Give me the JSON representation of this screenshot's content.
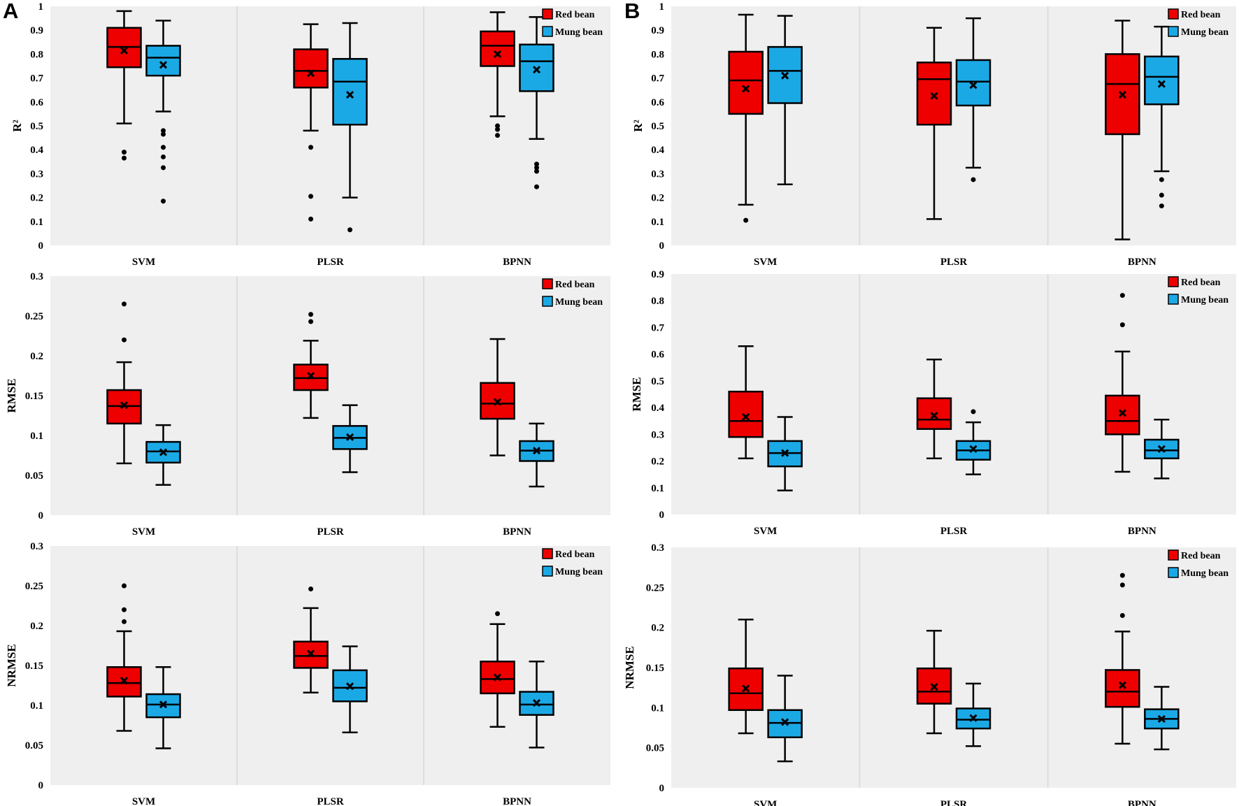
{
  "panels": [
    {
      "label": "A"
    },
    {
      "label": "B"
    }
  ],
  "legend": {
    "red": "Red bean",
    "mung": "Mung bean"
  },
  "colors": {
    "red": "#ee0000",
    "mung": "#1ba9e6",
    "plot_bg": "#efefef",
    "divider": "#dddddd",
    "outline": "#000000"
  },
  "chart_data": [
    {
      "type": "boxplot",
      "panel": "A",
      "title": "",
      "ylabel": "R²",
      "xlabel": "",
      "ylim": [
        0,
        1
      ],
      "yticks": [
        "0",
        "0.1",
        "0.2",
        "0.3",
        "0.4",
        "0.5",
        "0.6",
        "0.7",
        "0.8",
        "0.9",
        "1"
      ],
      "categories": [
        "SVM",
        "PLSR",
        "BPNN"
      ],
      "series": [
        {
          "name": "Red bean",
          "boxes": [
            {
              "whisker_low": 0.51,
              "q1": 0.745,
              "median": 0.83,
              "q3": 0.91,
              "whisker_high": 0.98,
              "mean": 0.815,
              "outliers": [
                0.39,
                0.365
              ]
            },
            {
              "whisker_low": 0.48,
              "q1": 0.66,
              "median": 0.73,
              "q3": 0.82,
              "whisker_high": 0.925,
              "mean": 0.72,
              "outliers": [
                0.41,
                0.205,
                0.11
              ]
            },
            {
              "whisker_low": 0.54,
              "q1": 0.75,
              "median": 0.835,
              "q3": 0.895,
              "whisker_high": 0.975,
              "mean": 0.8,
              "outliers": [
                0.5,
                0.485,
                0.46
              ]
            }
          ]
        },
        {
          "name": "Mung bean",
          "boxes": [
            {
              "whisker_low": 0.56,
              "q1": 0.71,
              "median": 0.785,
              "q3": 0.835,
              "whisker_high": 0.94,
              "mean": 0.755,
              "outliers": [
                0.48,
                0.465,
                0.41,
                0.37,
                0.325,
                0.185
              ]
            },
            {
              "whisker_low": 0.2,
              "q1": 0.505,
              "median": 0.685,
              "q3": 0.78,
              "whisker_high": 0.93,
              "mean": 0.63,
              "outliers": [
                0.065
              ]
            },
            {
              "whisker_low": 0.445,
              "q1": 0.645,
              "median": 0.77,
              "q3": 0.84,
              "whisker_high": 0.955,
              "mean": 0.735,
              "outliers": [
                0.34,
                0.325,
                0.31,
                0.245
              ]
            }
          ]
        }
      ]
    },
    {
      "type": "boxplot",
      "panel": "A",
      "title": "",
      "ylabel": "RMSE",
      "xlabel": "",
      "ylim": [
        0,
        0.3
      ],
      "yticks": [
        "0",
        "0.05",
        "0.1",
        "0.15",
        "0.2",
        "0.25",
        "0.3"
      ],
      "categories": [
        "SVM",
        "PLSR",
        "BPNN"
      ],
      "series": [
        {
          "name": "Red bean",
          "boxes": [
            {
              "whisker_low": 0.065,
              "q1": 0.115,
              "median": 0.137,
              "q3": 0.157,
              "whisker_high": 0.192,
              "mean": 0.138,
              "outliers": [
                0.265,
                0.22
              ]
            },
            {
              "whisker_low": 0.122,
              "q1": 0.157,
              "median": 0.172,
              "q3": 0.189,
              "whisker_high": 0.219,
              "mean": 0.175,
              "outliers": [
                0.252,
                0.243
              ]
            },
            {
              "whisker_low": 0.075,
              "q1": 0.121,
              "median": 0.14,
              "q3": 0.166,
              "whisker_high": 0.221,
              "mean": 0.142,
              "outliers": []
            }
          ]
        },
        {
          "name": "Mung bean",
          "boxes": [
            {
              "whisker_low": 0.038,
              "q1": 0.066,
              "median": 0.08,
              "q3": 0.092,
              "whisker_high": 0.113,
              "mean": 0.079,
              "outliers": []
            },
            {
              "whisker_low": 0.054,
              "q1": 0.083,
              "median": 0.097,
              "q3": 0.112,
              "whisker_high": 0.138,
              "mean": 0.098,
              "outliers": []
            },
            {
              "whisker_low": 0.036,
              "q1": 0.068,
              "median": 0.081,
              "q3": 0.093,
              "whisker_high": 0.115,
              "mean": 0.081,
              "outliers": []
            }
          ]
        }
      ]
    },
    {
      "type": "boxplot",
      "panel": "A",
      "title": "",
      "ylabel": "NRMSE",
      "xlabel": "",
      "ylim": [
        0,
        0.3
      ],
      "yticks": [
        "0",
        "0.05",
        "0.1",
        "0.15",
        "0.2",
        "0.25",
        "0.3"
      ],
      "categories": [
        "SVM",
        "PLSR",
        "BPNN"
      ],
      "series": [
        {
          "name": "Red bean",
          "boxes": [
            {
              "whisker_low": 0.068,
              "q1": 0.111,
              "median": 0.128,
              "q3": 0.148,
              "whisker_high": 0.193,
              "mean": 0.131,
              "outliers": [
                0.25,
                0.22,
                0.205
              ]
            },
            {
              "whisker_low": 0.116,
              "q1": 0.147,
              "median": 0.162,
              "q3": 0.18,
              "whisker_high": 0.222,
              "mean": 0.165,
              "outliers": [
                0.246
              ]
            },
            {
              "whisker_low": 0.073,
              "q1": 0.115,
              "median": 0.133,
              "q3": 0.155,
              "whisker_high": 0.202,
              "mean": 0.135,
              "outliers": [
                0.215
              ]
            }
          ]
        },
        {
          "name": "Mung bean",
          "boxes": [
            {
              "whisker_low": 0.046,
              "q1": 0.085,
              "median": 0.101,
              "q3": 0.114,
              "whisker_high": 0.148,
              "mean": 0.101,
              "outliers": []
            },
            {
              "whisker_low": 0.066,
              "q1": 0.105,
              "median": 0.122,
              "q3": 0.144,
              "whisker_high": 0.174,
              "mean": 0.124,
              "outliers": []
            },
            {
              "whisker_low": 0.047,
              "q1": 0.088,
              "median": 0.101,
              "q3": 0.117,
              "whisker_high": 0.155,
              "mean": 0.103,
              "outliers": []
            }
          ]
        }
      ]
    },
    {
      "type": "boxplot",
      "panel": "B",
      "title": "",
      "ylabel": "R²",
      "xlabel": "",
      "ylim": [
        0,
        1
      ],
      "yticks": [
        "0",
        "0.1",
        "0.2",
        "0.3",
        "0.4",
        "0.5",
        "0.6",
        "0.7",
        "0.8",
        "0.9",
        "1"
      ],
      "categories": [
        "SVM",
        "PLSR",
        "BPNN"
      ],
      "series": [
        {
          "name": "Red bean",
          "boxes": [
            {
              "whisker_low": 0.17,
              "q1": 0.55,
              "median": 0.69,
              "q3": 0.81,
              "whisker_high": 0.965,
              "mean": 0.655,
              "outliers": [
                0.105
              ]
            },
            {
              "whisker_low": 0.11,
              "q1": 0.505,
              "median": 0.695,
              "q3": 0.765,
              "whisker_high": 0.91,
              "mean": 0.625,
              "outliers": []
            },
            {
              "whisker_low": 0.025,
              "q1": 0.465,
              "median": 0.675,
              "q3": 0.8,
              "whisker_high": 0.94,
              "mean": 0.63,
              "outliers": []
            }
          ]
        },
        {
          "name": "Mung bean",
          "boxes": [
            {
              "whisker_low": 0.255,
              "q1": 0.595,
              "median": 0.73,
              "q3": 0.83,
              "whisker_high": 0.96,
              "mean": 0.71,
              "outliers": []
            },
            {
              "whisker_low": 0.325,
              "q1": 0.585,
              "median": 0.685,
              "q3": 0.775,
              "whisker_high": 0.95,
              "mean": 0.67,
              "outliers": [
                0.275
              ]
            },
            {
              "whisker_low": 0.31,
              "q1": 0.59,
              "median": 0.705,
              "q3": 0.79,
              "whisker_high": 0.915,
              "mean": 0.675,
              "outliers": [
                0.275,
                0.21,
                0.165
              ]
            }
          ]
        }
      ]
    },
    {
      "type": "boxplot",
      "panel": "B",
      "title": "",
      "ylabel": "RMSE",
      "xlabel": "",
      "ylim": [
        0,
        0.9
      ],
      "yticks": [
        "0",
        "0.1",
        "0.2",
        "0.3",
        "0.4",
        "0.5",
        "0.6",
        "0.7",
        "0.8",
        "0.9"
      ],
      "categories": [
        "SVM",
        "PLSR",
        "BPNN"
      ],
      "series": [
        {
          "name": "Red bean",
          "boxes": [
            {
              "whisker_low": 0.21,
              "q1": 0.29,
              "median": 0.35,
              "q3": 0.46,
              "whisker_high": 0.63,
              "mean": 0.365,
              "outliers": []
            },
            {
              "whisker_low": 0.21,
              "q1": 0.32,
              "median": 0.355,
              "q3": 0.435,
              "whisker_high": 0.58,
              "mean": 0.37,
              "outliers": []
            },
            {
              "whisker_low": 0.16,
              "q1": 0.3,
              "median": 0.35,
              "q3": 0.445,
              "whisker_high": 0.61,
              "mean": 0.38,
              "outliers": [
                0.82,
                0.71
              ]
            }
          ]
        },
        {
          "name": "Mung bean",
          "boxes": [
            {
              "whisker_low": 0.09,
              "q1": 0.18,
              "median": 0.23,
              "q3": 0.275,
              "whisker_high": 0.365,
              "mean": 0.23,
              "outliers": []
            },
            {
              "whisker_low": 0.15,
              "q1": 0.205,
              "median": 0.24,
              "q3": 0.275,
              "whisker_high": 0.345,
              "mean": 0.245,
              "outliers": [
                0.385
              ]
            },
            {
              "whisker_low": 0.135,
              "q1": 0.21,
              "median": 0.24,
              "q3": 0.28,
              "whisker_high": 0.355,
              "mean": 0.245,
              "outliers": []
            }
          ]
        }
      ]
    },
    {
      "type": "boxplot",
      "panel": "B",
      "title": "",
      "ylabel": "NRMSE",
      "xlabel": "",
      "ylim": [
        0,
        0.3
      ],
      "yticks": [
        "0",
        "0.05",
        "0.1",
        "0.15",
        "0.2",
        "0.25",
        "0.3"
      ],
      "categories": [
        "SVM",
        "PLSR",
        "BPNN"
      ],
      "series": [
        {
          "name": "Red bean",
          "boxes": [
            {
              "whisker_low": 0.068,
              "q1": 0.097,
              "median": 0.118,
              "q3": 0.149,
              "whisker_high": 0.21,
              "mean": 0.124,
              "outliers": []
            },
            {
              "whisker_low": 0.068,
              "q1": 0.105,
              "median": 0.12,
              "q3": 0.149,
              "whisker_high": 0.196,
              "mean": 0.126,
              "outliers": []
            },
            {
              "whisker_low": 0.055,
              "q1": 0.101,
              "median": 0.12,
              "q3": 0.147,
              "whisker_high": 0.195,
              "mean": 0.128,
              "outliers": [
                0.265,
                0.253,
                0.215
              ]
            }
          ]
        },
        {
          "name": "Mung bean",
          "boxes": [
            {
              "whisker_low": 0.033,
              "q1": 0.063,
              "median": 0.081,
              "q3": 0.097,
              "whisker_high": 0.14,
              "mean": 0.082,
              "outliers": []
            },
            {
              "whisker_low": 0.052,
              "q1": 0.074,
              "median": 0.085,
              "q3": 0.099,
              "whisker_high": 0.13,
              "mean": 0.087,
              "outliers": []
            },
            {
              "whisker_low": 0.048,
              "q1": 0.074,
              "median": 0.086,
              "q3": 0.098,
              "whisker_high": 0.126,
              "mean": 0.086,
              "outliers": []
            }
          ]
        }
      ]
    }
  ]
}
